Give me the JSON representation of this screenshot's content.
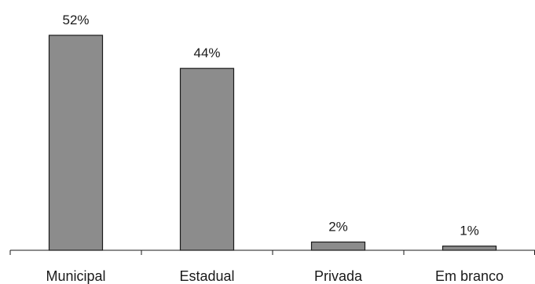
{
  "chart_data": {
    "type": "bar",
    "title": "",
    "xlabel": "",
    "ylabel": "",
    "categories": [
      "Municipal",
      "Estadual",
      "Privada",
      "Em branco"
    ],
    "values": [
      52,
      44,
      2,
      1
    ],
    "value_labels": [
      "52%",
      "44%",
      "2%",
      "1%"
    ],
    "ylim": [
      0,
      52
    ],
    "grid": false,
    "legend": "none",
    "colors": {
      "bar_fill": "#8c8c8c",
      "bar_stroke": "#1a1a1a",
      "axis": "#1a1a1a"
    }
  }
}
